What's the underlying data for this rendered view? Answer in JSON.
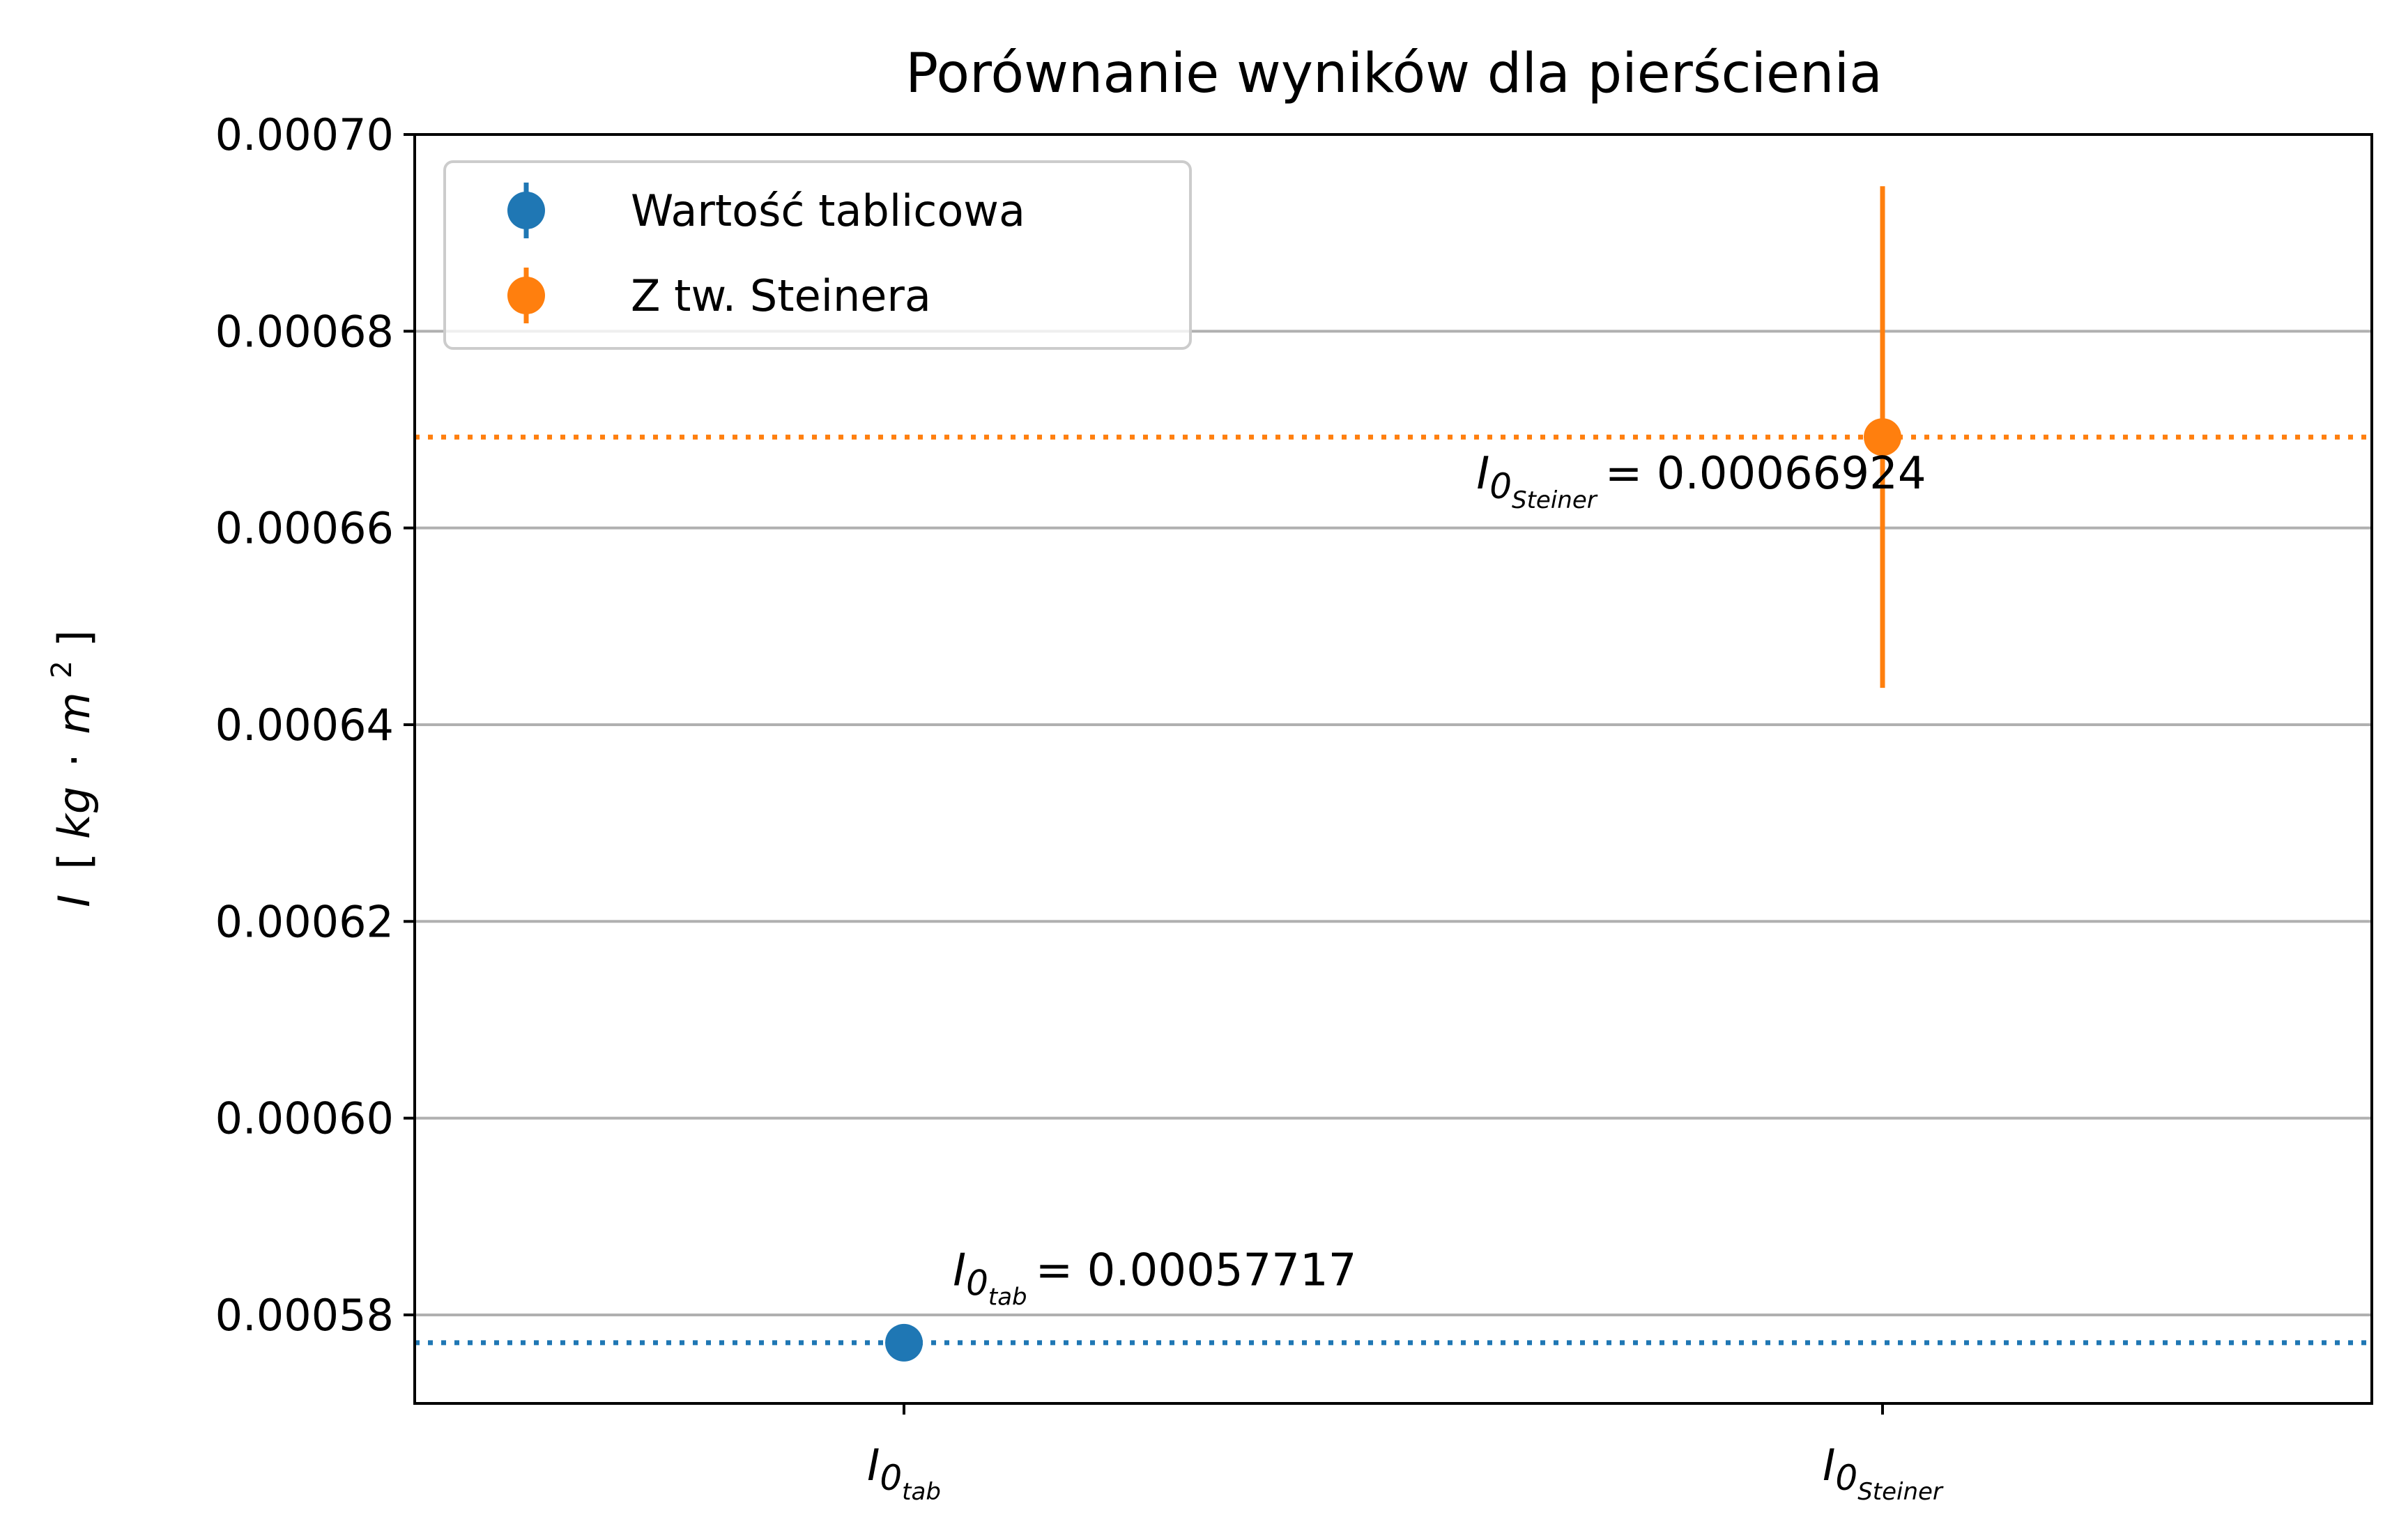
{
  "chart_data": {
    "type": "scatter",
    "title": "Porównanie wyników dla pierścienia",
    "ylabel": "I [kg·m²]",
    "ylabel_parts": {
      "symbol": "I",
      "open": "[",
      "unit_a": "kg",
      "dot": "·",
      "unit_b": "m",
      "exp": "2",
      "close": "]"
    },
    "ylim": [
      0.000571,
      0.0007
    ],
    "yticks": [
      0.00058,
      0.0006,
      0.00062,
      0.00064,
      0.00066,
      0.00068,
      0.0007
    ],
    "ytick_labels": [
      "0.00058",
      "0.00060",
      "0.00062",
      "0.00064",
      "0.00066",
      "0.00068",
      "0.00070"
    ],
    "xlim": [
      -0.5,
      1.5
    ],
    "categories": [
      {
        "x": 0,
        "main": "I",
        "sub1": "0",
        "sub2": "tab"
      },
      {
        "x": 1,
        "main": "I",
        "sub1": "0",
        "sub2": "Steiner"
      }
    ],
    "grid": {
      "axis": "y",
      "color": "#b0b0b0"
    },
    "legend": {
      "position": "top-left"
    },
    "series": [
      {
        "name": "Wartość tablicowa",
        "color": "#1f77b4",
        "x": 0,
        "y": 0.00057717,
        "yerr": 0,
        "hline": 0.00057717,
        "annotation": {
          "main": "I",
          "sub1": "0",
          "sub2": "tab",
          "eq": "= 0.00057717",
          "x": 0.05,
          "y": 0.000583
        }
      },
      {
        "name": "Z tw. Steinera",
        "color": "#ff7f0e",
        "x": 1,
        "y": 0.00066924,
        "yerr": 2.55e-05,
        "hline": 0.00066924,
        "annotation": {
          "main": "I",
          "sub1": "0",
          "sub2": "Steiner",
          "eq": "= 0.00066924",
          "x": 0.585,
          "y": 0.000664
        }
      }
    ]
  }
}
